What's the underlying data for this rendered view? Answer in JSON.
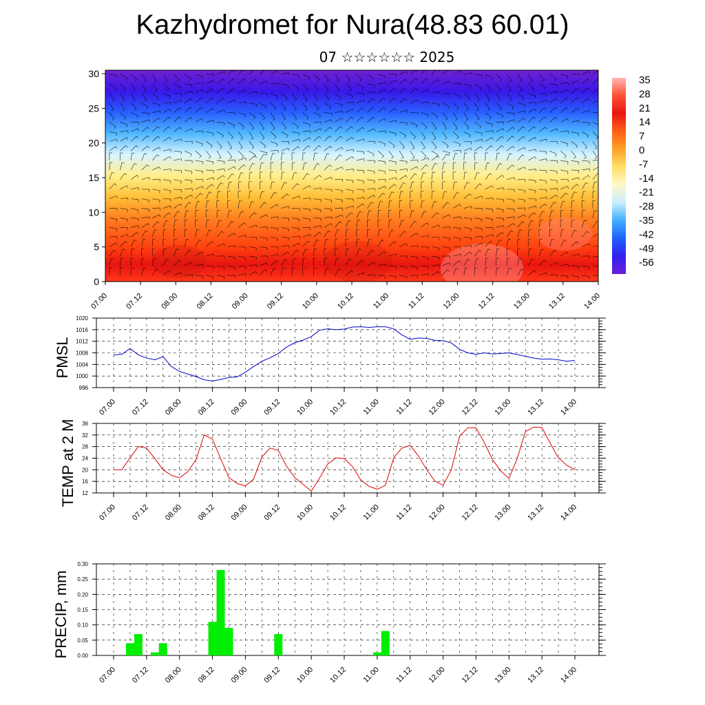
{
  "header": {
    "title": "Kazhydromet for Nura(48.83 60.01)",
    "subtitle": "07 ☆☆☆☆☆☆ 2025"
  },
  "chart_data": [
    {
      "type": "heatmap",
      "title": "",
      "xlabel": "",
      "ylabel": "",
      "x_tick_labels": [
        "07.00",
        "07.12",
        "08.00",
        "08.12",
        "09.00",
        "09.12",
        "10.00",
        "10.12",
        "11.00",
        "11.12",
        "12.00",
        "12.12",
        "13.00",
        "13.12",
        "14.00"
      ],
      "y_ticks": [
        0,
        5,
        10,
        15,
        20,
        25,
        30
      ],
      "ylim": [
        0,
        30.5
      ],
      "colorbar_labels": [
        "35",
        "28",
        "21",
        "14",
        "7",
        "0",
        "-7",
        "-14",
        "-21",
        "-28",
        "-35",
        "-42",
        "-49",
        "-56"
      ],
      "colorbar_values": [
        35,
        28,
        21,
        14,
        7,
        0,
        -7,
        -14,
        -21,
        -28,
        -35,
        -42,
        -49,
        -56
      ],
      "color_stops": [
        "#6020d0",
        "#3a30f0",
        "#2060ff",
        "#30b0ff",
        "#c8f0ff",
        "#ffffb0",
        "#ffd040",
        "#ff9020",
        "#ff4010",
        "#e01010",
        "#ffb0b0"
      ],
      "overlay": "wind barbs"
    },
    {
      "type": "line",
      "ylabel": "PMSL",
      "ylim": [
        996,
        1020
      ],
      "y_ticks": [
        996,
        1000,
        1004,
        1008,
        1012,
        1016,
        1020
      ],
      "x_tick_labels": [
        "07.00",
        "07.12",
        "08.00",
        "08.12",
        "09.00",
        "09.12",
        "10.00",
        "10.12",
        "11.00",
        "11.12",
        "12.00",
        "12.12",
        "13.00",
        "13.12",
        "14.00"
      ],
      "series": [
        {
          "color": "#0000cc",
          "x": [
            0,
            3,
            6,
            9,
            12,
            15,
            18,
            21,
            24,
            27,
            30,
            33,
            36,
            39,
            42,
            45,
            48,
            51,
            54,
            57,
            60,
            63,
            66,
            69,
            72,
            75,
            78,
            81,
            84,
            87,
            90,
            93,
            96,
            99,
            102,
            105,
            108,
            111,
            114,
            117,
            120,
            123,
            126,
            129,
            132,
            135,
            138,
            141,
            144,
            147,
            150,
            153,
            156,
            159,
            162,
            165,
            168
          ],
          "values": [
            1007.3,
            1007.5,
            1009.5,
            1007.3,
            1006.2,
            1005.6,
            1006.7,
            1003.3,
            1001.6,
            1000.7,
            999.8,
            998.7,
            998.3,
            998.8,
            999.5,
            999.7,
            1001.3,
            1003.3,
            1005.1,
            1006.3,
            1007.8,
            1010.0,
            1011.5,
            1012.4,
            1013.6,
            1015.8,
            1016.3,
            1016.0,
            1016.2,
            1016.9,
            1017.0,
            1016.8,
            1017.0,
            1017.0,
            1016.3,
            1014.2,
            1012.7,
            1013.1,
            1013.0,
            1012.3,
            1012.2,
            1011.4,
            1009.2,
            1008.0,
            1007.5,
            1008.0,
            1007.6,
            1007.8,
            1008.0,
            1007.4,
            1006.8,
            1006.2,
            1005.8,
            1005.9,
            1005.6,
            1005.1,
            1005.4
          ]
        }
      ]
    },
    {
      "type": "line",
      "ylabel": "TEMP at 2 M",
      "ylim": [
        12,
        36
      ],
      "y_ticks": [
        12,
        16,
        20,
        24,
        28,
        32,
        36
      ],
      "x_tick_labels": [
        "07.00",
        "07.12",
        "08.00",
        "08.12",
        "09.00",
        "09.12",
        "10.00",
        "10.12",
        "11.00",
        "11.12",
        "12.00",
        "12.12",
        "13.00",
        "13.12",
        "14.00"
      ],
      "series": [
        {
          "color": "#dd0000",
          "x": [
            0,
            3,
            6,
            9,
            12,
            15,
            18,
            21,
            24,
            27,
            30,
            33,
            36,
            39,
            42,
            45,
            48,
            51,
            54,
            57,
            60,
            63,
            66,
            69,
            72,
            75,
            78,
            81,
            84,
            87,
            90,
            93,
            96,
            99,
            102,
            105,
            108,
            111,
            114,
            117,
            120,
            123,
            126,
            129,
            132,
            135,
            138,
            141,
            144,
            147,
            150,
            153,
            156,
            159,
            162,
            165,
            168
          ],
          "values": [
            20,
            20,
            24.2,
            28,
            27.5,
            23.9,
            20,
            18.1,
            17.2,
            19.3,
            23.5,
            32,
            30.6,
            23.8,
            17.3,
            15.3,
            14.4,
            16.8,
            24.4,
            27.5,
            26.7,
            21.2,
            17.3,
            15.0,
            12.6,
            17.1,
            22.0,
            24.1,
            23.9,
            21.1,
            16.5,
            14.3,
            13.3,
            14.6,
            24.1,
            27.5,
            28.4,
            24.8,
            20.1,
            16.1,
            14.7,
            19.9,
            31.6,
            34.5,
            34.5,
            29.4,
            23.5,
            19.6,
            17.0,
            23.9,
            33.2,
            34.7,
            34.6,
            29.2,
            24.1,
            21.6,
            20.0
          ]
        }
      ]
    },
    {
      "type": "bar",
      "ylabel": "PRECIP, mm",
      "ylim": [
        0,
        0.3
      ],
      "y_tick_labels": [
        "0.00",
        "0.05",
        "0.10",
        "0.15",
        "0.20",
        "0.25",
        "0.30"
      ],
      "x_tick_labels": [
        "07.00",
        "07.12",
        "08.00",
        "08.12",
        "09.00",
        "09.12",
        "10.00",
        "10.12",
        "11.00",
        "11.12",
        "12.00",
        "12.12",
        "13.00",
        "13.12",
        "14.00"
      ],
      "bar_color": "#00ee00",
      "series": [
        {
          "x": [
            6,
            9,
            15,
            18,
            36,
            39,
            42,
            60,
            96,
            99
          ],
          "values": [
            0.04,
            0.07,
            0.01,
            0.04,
            0.11,
            0.28,
            0.09,
            0.07,
            0.01,
            0.08
          ]
        }
      ]
    }
  ]
}
